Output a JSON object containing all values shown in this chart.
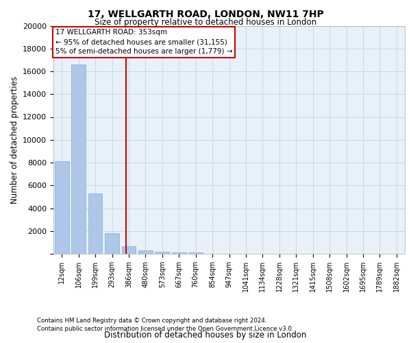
{
  "title1": "17, WELLGARTH ROAD, LONDON, NW11 7HP",
  "title2": "Size of property relative to detached houses in London",
  "xlabel": "Distribution of detached houses by size in London",
  "ylabel": "Number of detached properties",
  "categories": [
    "12sqm",
    "106sqm",
    "199sqm",
    "293sqm",
    "386sqm",
    "480sqm",
    "573sqm",
    "667sqm",
    "760sqm",
    "854sqm",
    "947sqm",
    "1041sqm",
    "1134sqm",
    "1228sqm",
    "1321sqm",
    "1415sqm",
    "1508sqm",
    "1602sqm",
    "1695sqm",
    "1789sqm",
    "1882sqm"
  ],
  "values": [
    8100,
    16600,
    5300,
    1800,
    650,
    320,
    200,
    150,
    120,
    0,
    0,
    0,
    0,
    0,
    0,
    0,
    0,
    0,
    0,
    0,
    0
  ],
  "bar_color": "#aec6e8",
  "bar_edge_color": "#7bafd4",
  "vline_x": 3.85,
  "vline_color": "#cc0000",
  "annotation_text_line1": "17 WELLGARTH ROAD: 353sqm",
  "annotation_text_line2": "← 95% of detached houses are smaller (31,155)",
  "annotation_text_line3": "5% of semi-detached houses are larger (1,779) →",
  "annotation_box_color": "#cc0000",
  "annotation_bg_color": "#ffffff",
  "ylim": [
    0,
    20000
  ],
  "yticks": [
    0,
    2000,
    4000,
    6000,
    8000,
    10000,
    12000,
    14000,
    16000,
    18000,
    20000
  ],
  "grid_color": "#c8d8e8",
  "bg_color": "#e8f0f8",
  "footnote1": "Contains HM Land Registry data © Crown copyright and database right 2024.",
  "footnote2": "Contains public sector information licensed under the Open Government Licence v3.0."
}
